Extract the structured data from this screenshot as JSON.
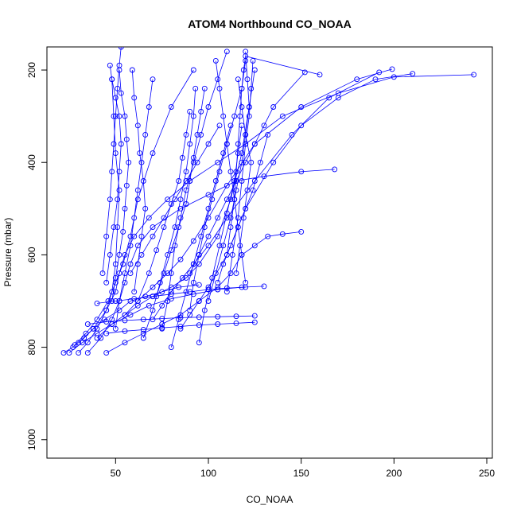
{
  "chart_data": {
    "type": "line",
    "title": "ATOM4 Northbound CO_NOAA",
    "xlabel": "CO_NOAA",
    "ylabel": "Pressure (mbar)",
    "xlim": [
      13,
      253
    ],
    "ylim": [
      1040,
      150
    ],
    "y_reversed": true,
    "xticks": [
      50,
      100,
      150,
      200,
      250
    ],
    "yticks": [
      200,
      400,
      600,
      800,
      1000
    ],
    "grid": false,
    "legend": "none",
    "color": "#0000ff",
    "marker": "open-circle",
    "series": [
      {
        "x": [
          22,
          27,
          33,
          38,
          44,
          52,
          58,
          66,
          75,
          84,
          95
        ],
        "y": [
          812,
          800,
          780,
          760,
          740,
          720,
          700,
          690,
          680,
          670,
          665
        ]
      },
      {
        "x": [
          28,
          34,
          40,
          46,
          50,
          54,
          58,
          62,
          70,
          80,
          92
        ],
        "y": [
          795,
          770,
          740,
          700,
          660,
          620,
          560,
          480,
          380,
          280,
          200
        ]
      },
      {
        "x": [
          30,
          38,
          45,
          50,
          52,
          55,
          60,
          68,
          78,
          90,
          105,
          120,
          140,
          170,
          200,
          243
        ],
        "y": [
          790,
          760,
          720,
          680,
          640,
          600,
          560,
          520,
          480,
          440,
          400,
          360,
          300,
          250,
          215,
          210
        ]
      },
      {
        "x": [
          35,
          42,
          48,
          52,
          55,
          58,
          62,
          70,
          85,
          100,
          115,
          130,
          150,
          168
        ],
        "y": [
          812,
          780,
          740,
          700,
          660,
          620,
          580,
          540,
          500,
          470,
          440,
          430,
          420,
          415
        ]
      },
      {
        "x": [
          40,
          48,
          55,
          62,
          70,
          80,
          88,
          95,
          105,
          112,
          118,
          122,
          125
        ],
        "y": [
          780,
          750,
          730,
          710,
          690,
          670,
          650,
          620,
          560,
          480,
          380,
          280,
          200
        ]
      },
      {
        "x": [
          45,
          55,
          65,
          75,
          85,
          95,
          105,
          112,
          118,
          125,
          132,
          140,
          150
        ],
        "y": [
          812,
          790,
          770,
          750,
          730,
          700,
          670,
          640,
          600,
          580,
          560,
          555,
          550
        ]
      },
      {
        "x": [
          25,
          32,
          40,
          48,
          58,
          68,
          80,
          92,
          105,
          118,
          130
        ],
        "y": [
          812,
          790,
          770,
          750,
          730,
          710,
          695,
          685,
          675,
          670,
          668
        ]
      },
      {
        "x": [
          48,
          50,
          52,
          54,
          55,
          56,
          57,
          56,
          55,
          53,
          52
        ],
        "y": [
          700,
          650,
          600,
          550,
          500,
          450,
          400,
          350,
          300,
          250,
          200
        ]
      },
      {
        "x": [
          45,
          47,
          49,
          51,
          52,
          53,
          52,
          50,
          48,
          47
        ],
        "y": [
          660,
          600,
          540,
          480,
          420,
          360,
          300,
          260,
          220,
          190
        ]
      },
      {
        "x": [
          43,
          45,
          47,
          48,
          49,
          50,
          51,
          52,
          53
        ],
        "y": [
          640,
          560,
          480,
          420,
          360,
          300,
          240,
          190,
          150
        ]
      },
      {
        "x": [
          60,
          62,
          64,
          66,
          65,
          63,
          62,
          60,
          59
        ],
        "y": [
          680,
          620,
          560,
          500,
          440,
          380,
          320,
          260,
          200
        ]
      },
      {
        "x": [
          75,
          78,
          80,
          82,
          85,
          88,
          92,
          96,
          100,
          105,
          110
        ],
        "y": [
          760,
          700,
          640,
          580,
          520,
          460,
          400,
          340,
          280,
          220,
          160
        ]
      },
      {
        "x": [
          90,
          92,
          95,
          98,
          102,
          106,
          110,
          114,
          118,
          120
        ],
        "y": [
          720,
          660,
          600,
          540,
          480,
          420,
          360,
          300,
          240,
          180
        ]
      },
      {
        "x": [
          100,
          104,
          108,
          112,
          115,
          118,
          120,
          122,
          121,
          120
        ],
        "y": [
          700,
          640,
          580,
          520,
          460,
          400,
          340,
          280,
          220,
          160
        ]
      },
      {
        "x": [
          110,
          113,
          116,
          118,
          120,
          122,
          123,
          124
        ],
        "y": [
          680,
          600,
          520,
          440,
          360,
          300,
          240,
          180
        ]
      },
      {
        "x": [
          85,
          90,
          95,
          100,
          110,
          120,
          135,
          150,
          170,
          190,
          210
        ],
        "y": [
          760,
          730,
          700,
          670,
          600,
          500,
          400,
          320,
          260,
          220,
          208
        ]
      },
      {
        "x": [
          70,
          75,
          80,
          86,
          92,
          100,
          110,
          125,
          145,
          165,
          192
        ],
        "y": [
          740,
          710,
          680,
          650,
          620,
          580,
          520,
          440,
          340,
          260,
          205
        ]
      },
      {
        "x": [
          55,
          62,
          70,
          78,
          85,
          92,
          100,
          110,
          125,
          150,
          180,
          199
        ],
        "y": [
          730,
          700,
          670,
          640,
          610,
          570,
          520,
          450,
          360,
          280,
          220,
          198
        ]
      },
      {
        "x": [
          65,
          70,
          74,
          78,
          82,
          85,
          88,
          90,
          92,
          93
        ],
        "y": [
          780,
          720,
          660,
          600,
          540,
          480,
          420,
          360,
          300,
          240
        ]
      },
      {
        "x": [
          80,
          84,
          88,
          92,
          96,
          100,
          104,
          108,
          112
        ],
        "y": [
          800,
          740,
          680,
          620,
          560,
          500,
          440,
          380,
          320
        ]
      },
      {
        "x": [
          95,
          98,
          102,
          106,
          110,
          114,
          116,
          118
        ],
        "y": [
          790,
          720,
          650,
          580,
          510,
          440,
          380,
          320
        ]
      },
      {
        "x": [
          50,
          52,
          55,
          58,
          60,
          62,
          64,
          66,
          68,
          70
        ],
        "y": [
          760,
          700,
          640,
          580,
          520,
          460,
          400,
          340,
          280,
          220
        ]
      },
      {
        "x": [
          30,
          35,
          40,
          45,
          48,
          50,
          51,
          52,
          50,
          49,
          48
        ],
        "y": [
          812,
          790,
          760,
          720,
          680,
          620,
          540,
          460,
          380,
          300,
          220
        ]
      },
      {
        "x": [
          58,
          64,
          70,
          76,
          82,
          88,
          94,
          100,
          106
        ],
        "y": [
          640,
          600,
          560,
          520,
          480,
          440,
          400,
          360,
          320
        ]
      },
      {
        "x": [
          105,
          108,
          112,
          116,
          120,
          124,
          128,
          132
        ],
        "y": [
          660,
          620,
          580,
          540,
          500,
          460,
          400,
          340
        ]
      },
      {
        "x": [
          115,
          117,
          119,
          121,
          123,
          120,
          118,
          116
        ],
        "y": [
          640,
          580,
          520,
          460,
          400,
          340,
          280,
          220
        ]
      },
      {
        "x": [
          120,
          118,
          116,
          114,
          112,
          110,
          108,
          106,
          104
        ],
        "y": [
          660,
          600,
          540,
          480,
          420,
          360,
          300,
          240,
          180
        ]
      },
      {
        "x": [
          62,
          68,
          72,
          76,
          80,
          84,
          86,
          88,
          90
        ],
        "y": [
          700,
          640,
          590,
          540,
          490,
          440,
          390,
          340,
          290
        ]
      },
      {
        "x": [
          72,
          76,
          80,
          84,
          88,
          90,
          92,
          94,
          96,
          98
        ],
        "y": [
          690,
          640,
          590,
          540,
          490,
          440,
          390,
          340,
          290,
          240
        ]
      },
      {
        "x": [
          35,
          45,
          55,
          65,
          75,
          85,
          95,
          105,
          115,
          125
        ],
        "y": [
          750,
          745,
          742,
          740,
          738,
          736,
          735,
          734,
          733,
          732
        ]
      },
      {
        "x": [
          90,
          95,
          100,
          105,
          110,
          115,
          120,
          125,
          130,
          135,
          152
        ],
        "y": [
          640,
          600,
          560,
          520,
          480,
          440,
          400,
          360,
          320,
          280,
          205
        ]
      },
      {
        "x": [
          110,
          112,
          114,
          115,
          116,
          117,
          118,
          119,
          120,
          160
        ],
        "y": [
          600,
          540,
          480,
          420,
          360,
          300,
          240,
          200,
          170,
          210
        ]
      },
      {
        "x": [
          40,
          50,
          60,
          70,
          80,
          90,
          100,
          110,
          120
        ],
        "y": [
          705,
          700,
          695,
          690,
          685,
          680,
          675,
          672,
          670
        ]
      },
      {
        "x": [
          45,
          55,
          65,
          75,
          85,
          95,
          105,
          115,
          125
        ],
        "y": [
          770,
          765,
          762,
          758,
          755,
          752,
          750,
          748,
          746
        ]
      }
    ]
  }
}
